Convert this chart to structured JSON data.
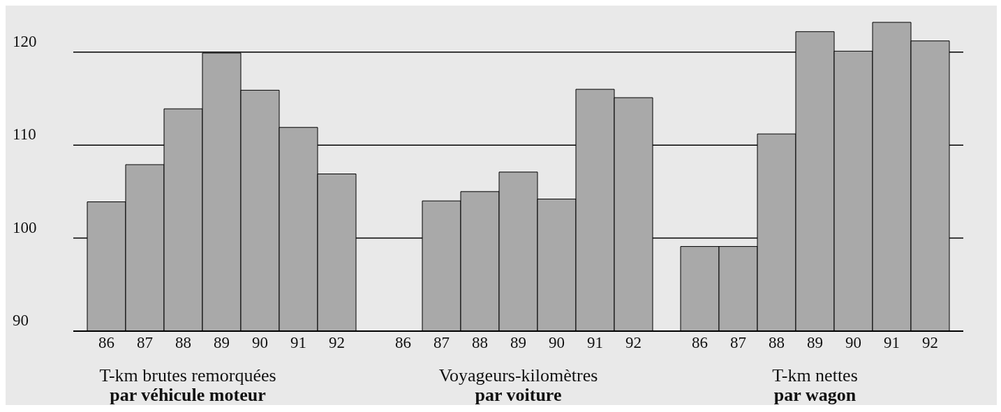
{
  "chart_data": [
    {
      "type": "bar",
      "xlabel": "T-km brutes remorquées\npar véhicule moteur",
      "categories": [
        "86",
        "87",
        "88",
        "89",
        "90",
        "91",
        "92"
      ],
      "values": [
        103.9,
        107.9,
        113.9,
        119.9,
        115.9,
        111.9,
        106.9
      ],
      "color": "#a9a9a9",
      "ylim": [
        90,
        125
      ],
      "yticks": [
        90,
        100,
        110,
        120
      ],
      "grid": "y"
    },
    {
      "type": "bar",
      "xlabel": "Voyageurs-kilomètres\npar voiture",
      "categories": [
        "86",
        "87",
        "88",
        "89",
        "90",
        "91",
        "92"
      ],
      "values": [
        null,
        104.0,
        105.0,
        107.1,
        104.2,
        116.0,
        115.1
      ],
      "color": "#a9a9a9",
      "ylim": [
        90,
        125
      ],
      "yticks": [
        90,
        100,
        110,
        120
      ],
      "grid": "y",
      "tick_labels": "x"
    },
    {
      "type": "bar",
      "xlabel": "T-km nettes\npar wagon",
      "categories": [
        "86",
        "87",
        "88",
        "89",
        "90",
        "91",
        "92"
      ],
      "values": [
        99.1,
        99.1,
        111.2,
        122.2,
        120.1,
        123.2,
        121.2
      ],
      "color": "#a9a9a9",
      "ylim": [
        90,
        125
      ],
      "yticks": [
        90,
        100,
        110,
        120
      ],
      "grid": "y",
      "tick_labels": "x"
    }
  ]
}
